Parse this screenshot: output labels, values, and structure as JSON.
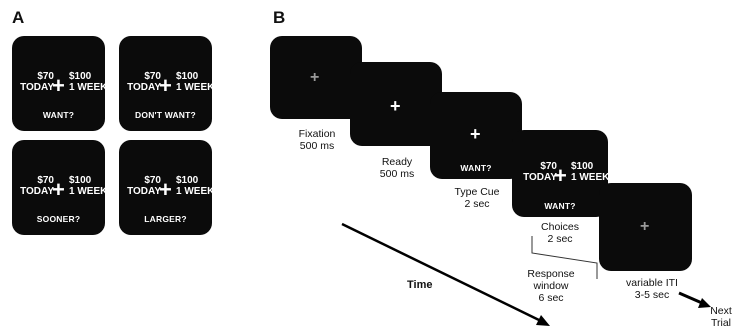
{
  "panel_a": {
    "label": "A",
    "screens": [
      {
        "left_amount": "$70",
        "left_time": "TODAY",
        "right_amount": "$100",
        "right_time": "1 WEEK",
        "cue": "WANT?"
      },
      {
        "left_amount": "$70",
        "left_time": "TODAY",
        "right_amount": "$100",
        "right_time": "1 WEEK",
        "cue": "DON'T WANT?"
      },
      {
        "left_amount": "$70",
        "left_time": "TODAY",
        "right_amount": "$100",
        "right_time": "1 WEEK",
        "cue": "SOONER?"
      },
      {
        "left_amount": "$70",
        "left_time": "TODAY",
        "right_amount": "$100",
        "right_time": "1 WEEK",
        "cue": "LARGER?"
      }
    ]
  },
  "panel_b": {
    "label": "B",
    "fixation": {
      "label": "Fixation",
      "duration": "500 ms"
    },
    "ready": {
      "label": "Ready",
      "duration": "500 ms"
    },
    "type_cue": {
      "label": "Type Cue",
      "duration": "2 sec",
      "cue": "WANT?"
    },
    "choices": {
      "label": "Choices",
      "duration": "2 sec",
      "left_amount": "$70",
      "left_time": "TODAY",
      "right_amount": "$100",
      "right_time": "1 WEEK",
      "cue": "WANT?"
    },
    "response_window": {
      "line1": "Response",
      "line2": "window",
      "duration": "6 sec"
    },
    "iti": {
      "label": "variable ITI",
      "duration": "3-5 sec"
    },
    "time_label": "Time",
    "next_trial": {
      "line1": "Next",
      "line2": "Trial"
    }
  },
  "glyphs": {
    "plus": "+"
  }
}
